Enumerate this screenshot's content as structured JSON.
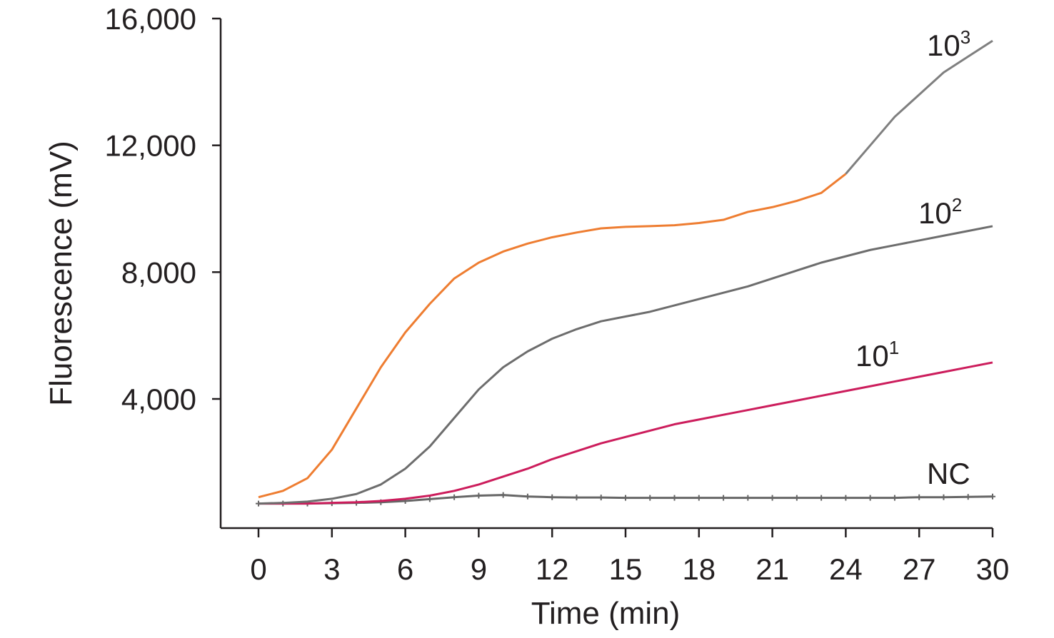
{
  "chart_data": {
    "type": "line",
    "title": "",
    "xlabel": "Time (min)",
    "ylabel": "Fluorescence (mV)",
    "xlim": [
      0,
      30
    ],
    "ylim": [
      -500,
      16000
    ],
    "x_ticks": [
      0,
      3,
      6,
      9,
      12,
      15,
      18,
      21,
      24,
      27,
      30
    ],
    "x_tick_labels": [
      "0",
      "3",
      "6",
      "9",
      "12",
      "15",
      "18",
      "21",
      "24",
      "27",
      "30"
    ],
    "y_ticks": [
      4000,
      8000,
      12000,
      16000
    ],
    "y_tick_labels": [
      "4,000",
      "8,000",
      "12,000",
      "16,000"
    ],
    "grid": false,
    "legend": "none",
    "series": [
      {
        "name": "10³",
        "label_base": "10",
        "label_sup": "3",
        "color": "#ee7d31",
        "color_late": "#7f7f7f",
        "x": [
          0,
          1,
          2,
          3,
          4,
          5,
          6,
          7,
          8,
          9,
          10,
          11,
          12,
          13,
          14,
          15,
          16,
          17,
          18,
          19,
          20,
          21,
          22,
          23,
          24,
          25,
          26,
          27,
          28,
          29,
          30
        ],
        "y": [
          900,
          1100,
          1500,
          2400,
          3700,
          5000,
          6100,
          7000,
          7800,
          8300,
          8650,
          8900,
          9100,
          9250,
          9380,
          9430,
          9450,
          9480,
          9550,
          9650,
          9900,
          10050,
          10250,
          10500,
          11100,
          12000,
          12900,
          13600,
          14300,
          14800,
          15300
        ]
      },
      {
        "name": "10²",
        "label_base": "10",
        "label_sup": "2",
        "color": "#6d6d6d",
        "x": [
          0,
          1,
          2,
          3,
          4,
          5,
          6,
          7,
          8,
          9,
          10,
          11,
          12,
          13,
          14,
          15,
          16,
          17,
          18,
          19,
          20,
          21,
          22,
          23,
          24,
          25,
          26,
          27,
          28,
          29,
          30
        ],
        "y": [
          700,
          720,
          760,
          850,
          1000,
          1300,
          1800,
          2500,
          3400,
          4300,
          5000,
          5500,
          5900,
          6200,
          6450,
          6600,
          6750,
          6950,
          7150,
          7350,
          7550,
          7800,
          8050,
          8300,
          8500,
          8700,
          8850,
          9000,
          9150,
          9300,
          9450
        ]
      },
      {
        "name": "10¹",
        "label_base": "10",
        "label_sup": "1",
        "color": "#cc1d5c",
        "x": [
          0,
          1,
          2,
          3,
          4,
          5,
          6,
          7,
          8,
          9,
          10,
          11,
          12,
          13,
          14,
          15,
          16,
          17,
          18,
          19,
          20,
          21,
          22,
          23,
          24,
          25,
          26,
          27,
          28,
          29,
          30
        ],
        "y": [
          700,
          700,
          700,
          720,
          740,
          780,
          850,
          950,
          1100,
          1300,
          1550,
          1800,
          2100,
          2350,
          2600,
          2800,
          3000,
          3200,
          3350,
          3500,
          3650,
          3800,
          3950,
          4100,
          4250,
          4400,
          4550,
          4700,
          4850,
          5000,
          5150
        ]
      },
      {
        "name": "NC",
        "label_base": "NC",
        "label_sup": "",
        "color": "#666666",
        "marker": "cross",
        "x": [
          0,
          1,
          2,
          3,
          4,
          5,
          6,
          7,
          8,
          9,
          10,
          11,
          12,
          13,
          14,
          15,
          16,
          17,
          18,
          19,
          20,
          21,
          22,
          23,
          24,
          25,
          26,
          27,
          28,
          29,
          30
        ],
        "y": [
          700,
          700,
          700,
          710,
          720,
          740,
          780,
          840,
          900,
          950,
          970,
          920,
          900,
          890,
          890,
          880,
          880,
          880,
          880,
          880,
          880,
          880,
          880,
          880,
          880,
          880,
          880,
          900,
          900,
          910,
          920
        ]
      }
    ]
  }
}
